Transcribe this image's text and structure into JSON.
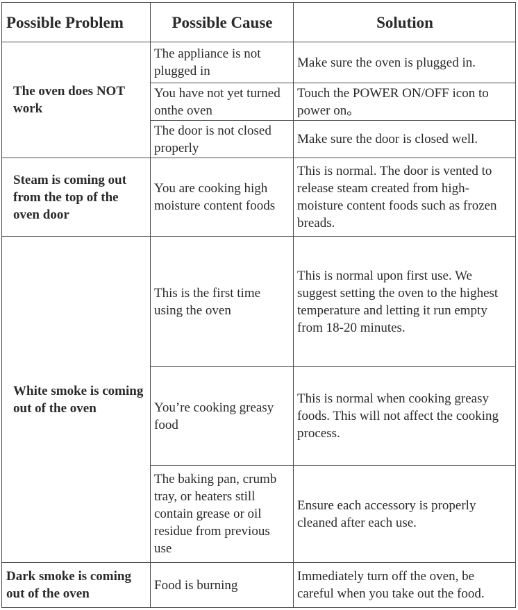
{
  "headers": [
    "Possible Problem",
    "Possible Cause",
    "Solution"
  ],
  "rows": [
    {
      "problem": "The oven does NOT work",
      "cause": "The appliance is not plugged in",
      "solution": "Make sure the oven is plugged in."
    },
    {
      "cause": "You have not yet turned onthe oven",
      "solution": "Touch the POWER ON/OFF icon to power on。"
    },
    {
      "cause": "The door is not closed properly",
      "solution": "Make sure the door is closed well."
    },
    {
      "problem": "Steam is coming out from the top of the oven door",
      "cause": "You are cooking high moisture content foods",
      "solution": "This is normal. The door is vented to release steam created from high-moisture content foods such as frozen breads."
    },
    {
      "problem": "White smoke is coming out of the oven",
      "cause": "This is the first time using the oven",
      "solution": "This is normal upon first use. We suggest setting the oven to the highest temperature and letting it run empty from 18-20 minutes."
    },
    {
      "cause": "You’re cooking greasy food",
      "solution": "This is normal when cooking greasy foods. This will not affect the cooking process."
    },
    {
      "cause": "The baking pan, crumb tray, or heaters still contain grease or oil residue from previous use",
      "solution": "Ensure each accessory is properly cleaned after each use."
    },
    {
      "problem": "Dark smoke is coming out of the oven",
      "cause": "Food is burning",
      "solution": "Immediately turn off the oven, be careful when you take out the food."
    }
  ]
}
